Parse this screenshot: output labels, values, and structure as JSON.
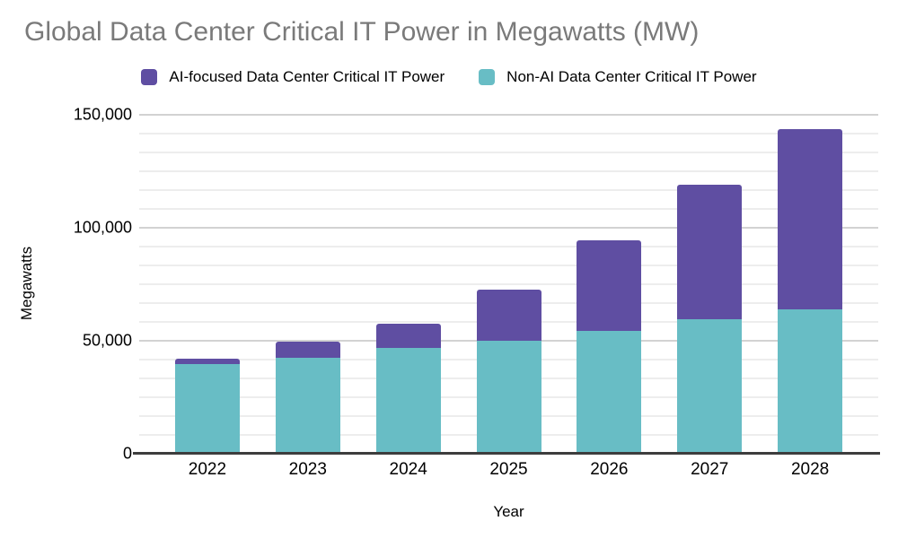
{
  "title": "Global Data Center Critical IT Power in Megawatts (MW)",
  "colors": {
    "ai_purple": "#5F4EA2",
    "non_ai_teal": "#68BDC5",
    "title_gray": "#7a7a7a",
    "axis_line": "#3d3d3d",
    "grid_major": "#d2d2d2",
    "grid_minor": "#ededed"
  },
  "legend": {
    "position": "top",
    "items": [
      {
        "label": "AI-focused Data Center Critical IT Power",
        "color": "#5F4EA2",
        "swatch": "square-icon"
      },
      {
        "label": "Non-AI Data Center Critical IT Power",
        "color": "#68BDC5",
        "swatch": "square-icon"
      }
    ]
  },
  "chart_data": {
    "type": "bar",
    "stacked": true,
    "title": "Global Data Center Critical IT Power in Megawatts (MW)",
    "xlabel": "Year",
    "ylabel": "Megawatts",
    "categories": [
      "2022",
      "2023",
      "2024",
      "2025",
      "2026",
      "2027",
      "2028"
    ],
    "series": [
      {
        "name": "AI-focused Data Center Critical IT Power",
        "color": "#5F4EA2",
        "stack_position": "top",
        "values": [
          2500,
          7000,
          10500,
          22500,
          40000,
          59500,
          79500
        ]
      },
      {
        "name": "Non-AI Data Center Critical IT Power",
        "color": "#68BDC5",
        "stack_position": "bottom",
        "values": [
          39500,
          42500,
          47000,
          50000,
          54500,
          59500,
          64000
        ]
      }
    ],
    "totals": [
      42000,
      49500,
      57500,
      72500,
      94500,
      119000,
      143500
    ],
    "ylim": [
      0,
      150000
    ],
    "yticks": [
      0,
      50000,
      100000,
      150000
    ],
    "ytick_labels": [
      "0",
      "50,000",
      "100,000",
      "150,000"
    ],
    "minor_gridlines_per_major_interval": 5,
    "grid": true,
    "legend_position": "top"
  }
}
